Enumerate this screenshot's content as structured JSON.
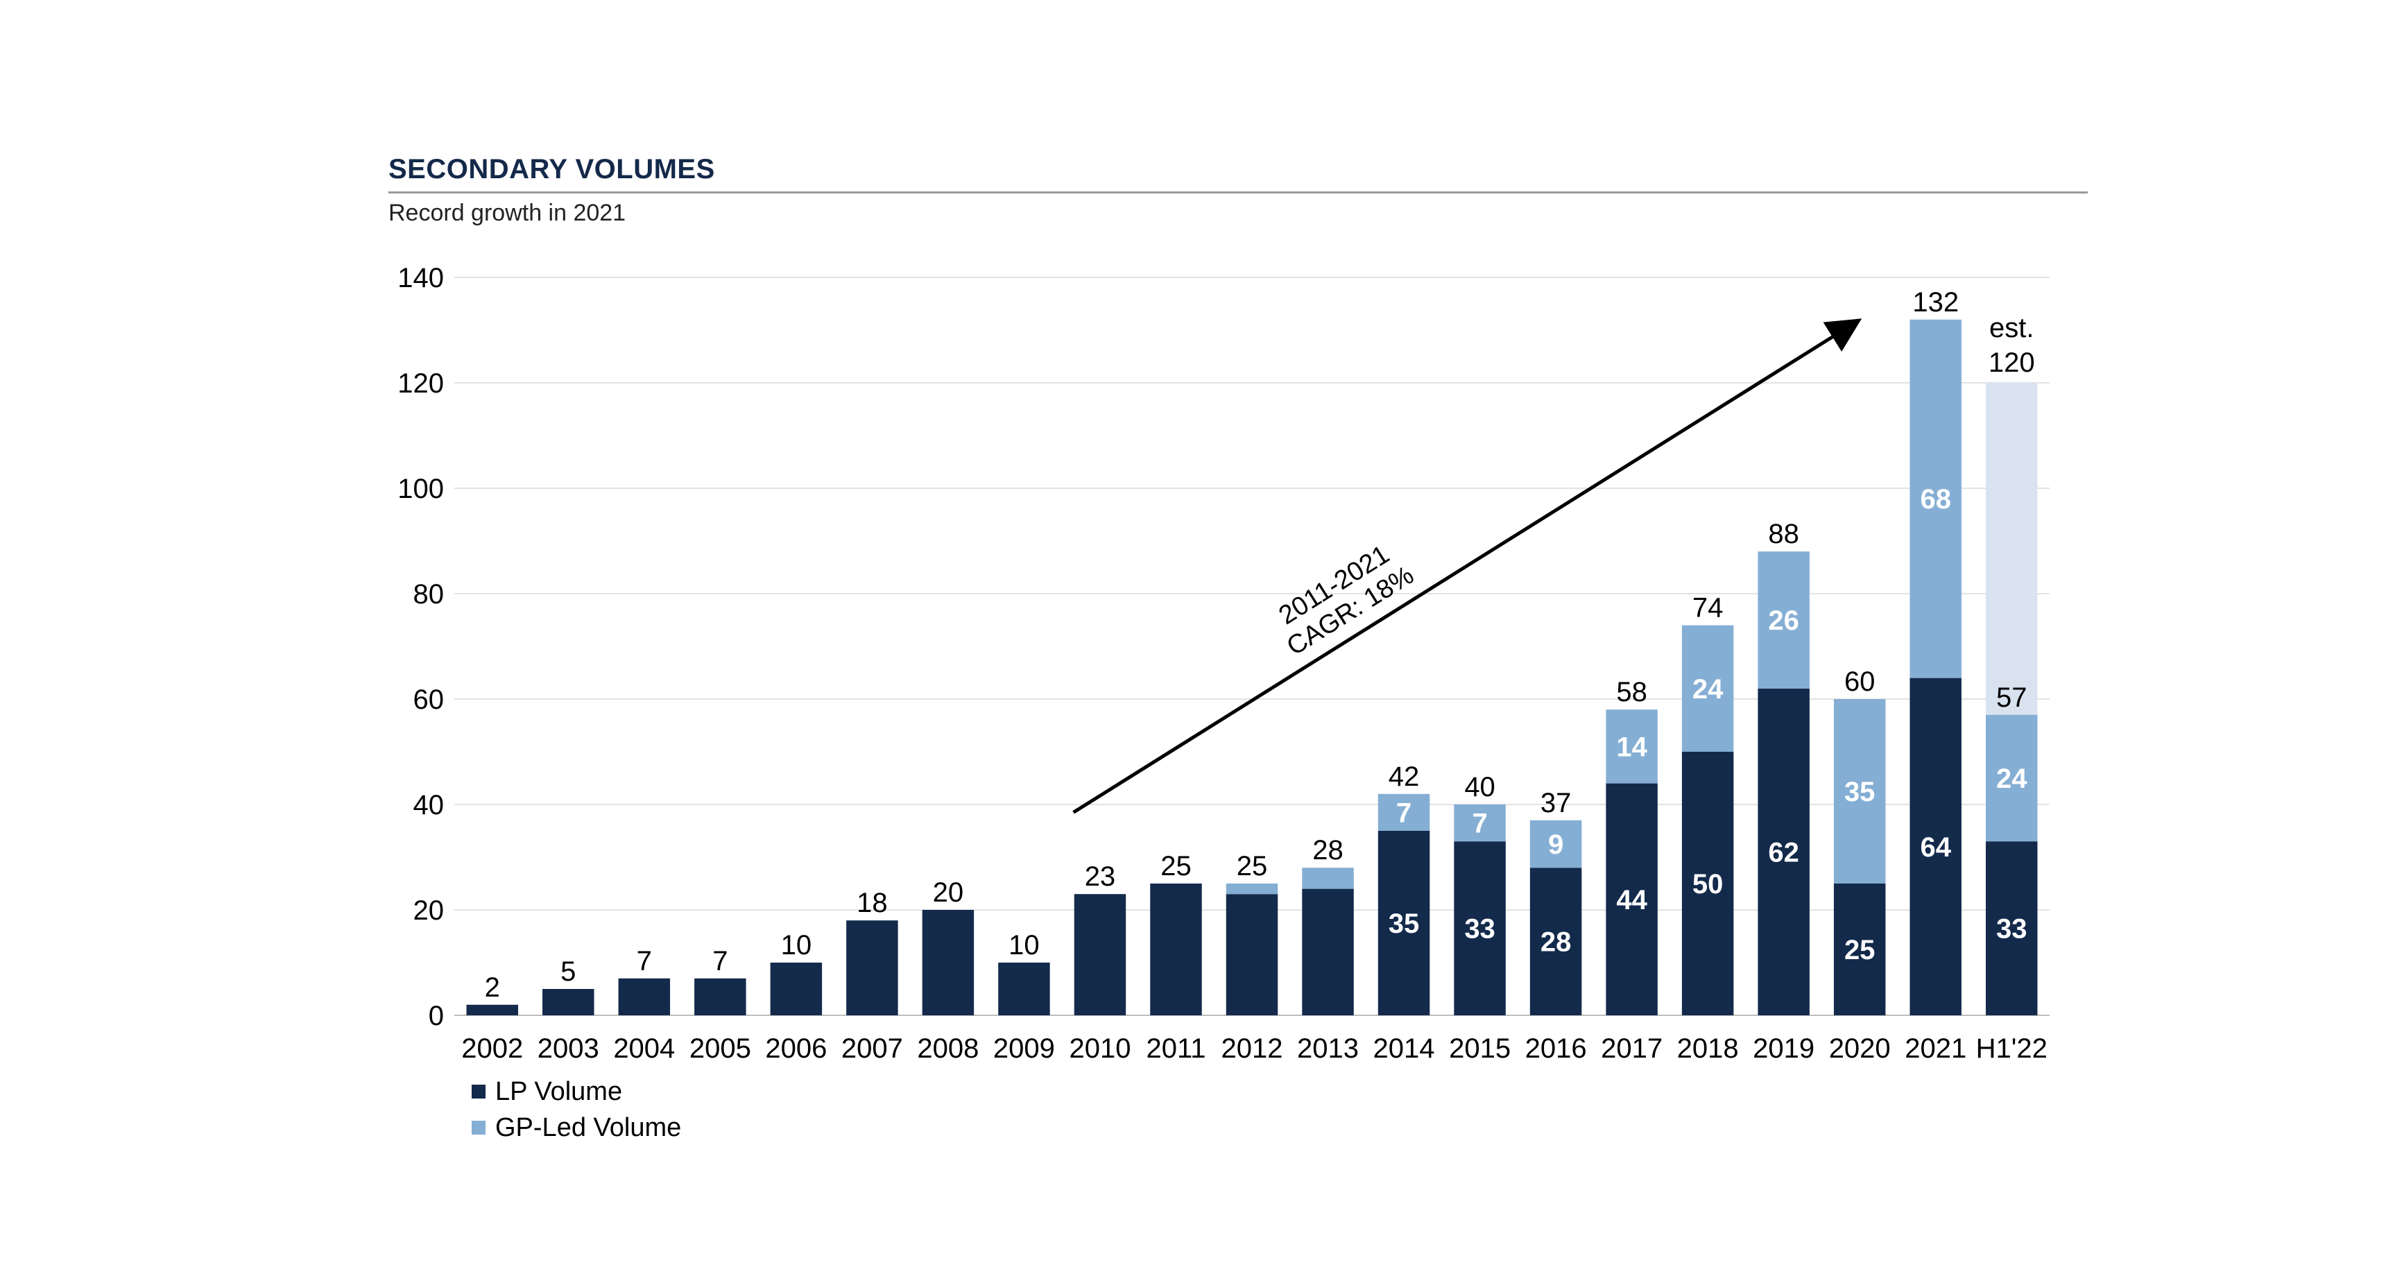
{
  "chart_data": {
    "type": "bar",
    "stacked": true,
    "title": "SECONDARY VOLUMES",
    "subtitle": "Record growth in 2021",
    "xlabel": "",
    "ylabel": "",
    "ylim": [
      0,
      140
    ],
    "yticks": [
      0,
      20,
      40,
      60,
      80,
      100,
      120,
      140
    ],
    "grid": true,
    "legend_position": "bottom-left",
    "categories": [
      "2002",
      "2003",
      "2004",
      "2005",
      "2006",
      "2007",
      "2008",
      "2009",
      "2010",
      "2011",
      "2012",
      "2013",
      "2014",
      "2015",
      "2016",
      "2017",
      "2018",
      "2019",
      "2020",
      "2021",
      "H1'22"
    ],
    "series": [
      {
        "name": "LP Volume",
        "color": "#132a4b",
        "values": [
          2,
          5,
          7,
          7,
          10,
          18,
          20,
          10,
          23,
          25,
          23,
          24,
          35,
          33,
          28,
          44,
          50,
          62,
          25,
          64,
          33
        ],
        "labels": [
          "",
          "",
          "",
          "",
          "",
          "",
          "",
          "",
          "",
          "",
          "",
          "",
          "35",
          "33",
          "28",
          "44",
          "50",
          "62",
          "25",
          "64",
          "33"
        ]
      },
      {
        "name": "GP-Led Volume",
        "color": "#85aed4",
        "values": [
          0,
          0,
          0,
          0,
          0,
          0,
          0,
          0,
          0,
          0,
          2,
          4,
          7,
          7,
          9,
          14,
          24,
          26,
          35,
          68,
          24
        ],
        "labels": [
          "",
          "",
          "",
          "",
          "",
          "",
          "",
          "",
          "",
          "",
          "",
          "",
          "7",
          "7",
          "9",
          "14",
          "24",
          "26",
          "35",
          "68",
          "24"
        ]
      }
    ],
    "totals": [
      "2",
      "5",
      "7",
      "7",
      "10",
      "18",
      "20",
      "10",
      "23",
      "25",
      "25",
      "28",
      "42",
      "40",
      "37",
      "58",
      "74",
      "88",
      "60",
      "132",
      "57"
    ],
    "estimate": {
      "category": "H1'22",
      "value": 120,
      "color": "#d9e3ef",
      "label_line1": "est.",
      "label_line2": "120"
    },
    "annotation": {
      "line1": "2011-2021",
      "line2": "CAGR: 18%",
      "from": [
        "2010",
        38.5
      ],
      "to": [
        "2020",
        131.5
      ]
    }
  }
}
